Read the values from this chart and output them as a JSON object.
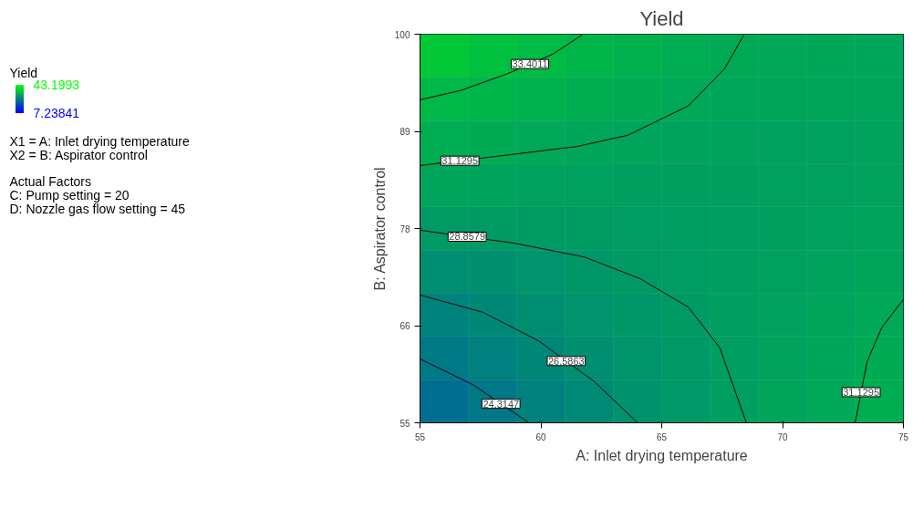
{
  "chart_data": [
    {
      "type": "heatmap",
      "legend_title": "Yield",
      "clim": [
        7.23841,
        43.1993
      ],
      "cticks": [
        7.23841,
        43.1993
      ],
      "categories": [
        null,
        null,
        null,
        null,
        null,
        null,
        null,
        null,
        null,
        null
      ],
      "y_categories": [
        null,
        null,
        null,
        null,
        null,
        null,
        null,
        null,
        null
      ],
      "cells": [
        [
          35.5,
          34.5,
          33.6,
          32.8,
          32.2,
          31.7,
          31.2,
          30.9,
          30.8,
          30.7
        ],
        [
          33.2,
          32.8,
          32.3,
          31.8,
          31.4,
          31.0,
          30.7,
          30.5,
          30.4,
          30.4
        ],
        [
          31.6,
          31.3,
          31.0,
          30.7,
          30.4,
          30.2,
          30.1,
          30.0,
          30.0,
          30.1
        ],
        [
          30.4,
          30.2,
          30.0,
          29.8,
          29.7,
          29.7,
          29.7,
          29.8,
          29.9,
          30.1
        ],
        [
          28.9,
          28.9,
          29.0,
          29.1,
          29.3,
          29.4,
          29.5,
          29.7,
          29.9,
          30.2
        ],
        [
          27.2,
          27.5,
          28.0,
          28.5,
          28.9,
          29.2,
          29.5,
          29.8,
          30.1,
          30.5
        ],
        [
          25.7,
          26.4,
          27.2,
          27.9,
          28.5,
          29.0,
          29.5,
          29.9,
          30.4,
          31.0
        ],
        [
          24.3,
          25.3,
          26.3,
          27.3,
          28.1,
          28.8,
          29.5,
          30.1,
          30.7,
          31.4
        ],
        [
          22.8,
          24.1,
          25.5,
          26.7,
          27.8,
          28.7,
          29.5,
          30.3,
          31.0,
          31.8
        ]
      ]
    },
    {
      "type": "line",
      "title": "Yield",
      "xlabel": "A: Inlet drying temperature",
      "ylabel": "B: Aspirator control",
      "annotations": [
        "X1 = A: Inlet drying temperature",
        "X2 = B: Aspirator control",
        "Actual Factors",
        "C: Pump setting = 20",
        "D: Nozzle gas flow setting = 45"
      ],
      "xlim": [
        55,
        75
      ],
      "xticks": [
        55,
        60,
        65,
        70,
        75
      ],
      "ylim": [
        55,
        100
      ],
      "yticks": [
        55,
        {
          "value": 66.25,
          "label": "66"
        },
        {
          "value": 77.5,
          "label": "78"
        },
        {
          "value": 88.75,
          "label": "89"
        },
        100
      ],
      "series": [
        {
          "type": "line",
          "name": "33.4011",
          "color": "#000000",
          "x": [
            55,
            56.7,
            58.6,
            60.5,
            61.7
          ],
          "values": [
            92.4,
            93.5,
            95.4,
            97.7,
            99.9
          ]
        },
        {
          "type": "line",
          "name": "31.1295",
          "color": "#000000",
          "x": [
            55,
            58.3,
            61.5,
            63.6,
            66.1,
            67.6,
            68.4
          ],
          "values": [
            84.8,
            85.9,
            87.0,
            88.3,
            91.7,
            96.0,
            99.9
          ]
        },
        {
          "type": "line",
          "name": "28.8579",
          "color": "#000000",
          "x": [
            55,
            58.9,
            61.8,
            64.1,
            66.1,
            67.4,
            68.5
          ],
          "values": [
            77.3,
            75.8,
            74.2,
            71.7,
            68.4,
            63.7,
            55
          ]
        },
        {
          "type": "line",
          "name": "26.5863",
          "color": "#000000",
          "x": [
            55,
            57.6,
            59.9,
            62.2,
            64.0
          ],
          "values": [
            69.8,
            67.8,
            64.5,
            59.8,
            55
          ]
        },
        {
          "type": "line",
          "name": "24.3147",
          "color": "#000000",
          "x": [
            55,
            57.2,
            59.5
          ],
          "values": [
            62.4,
            59.4,
            55
          ]
        },
        {
          "type": "line",
          "name": "31.1295",
          "color": "#000000",
          "x": [
            75,
            74.1,
            73.5,
            73.0
          ],
          "values": [
            69.3,
            66.0,
            62.1,
            55
          ]
        }
      ]
    }
  ]
}
